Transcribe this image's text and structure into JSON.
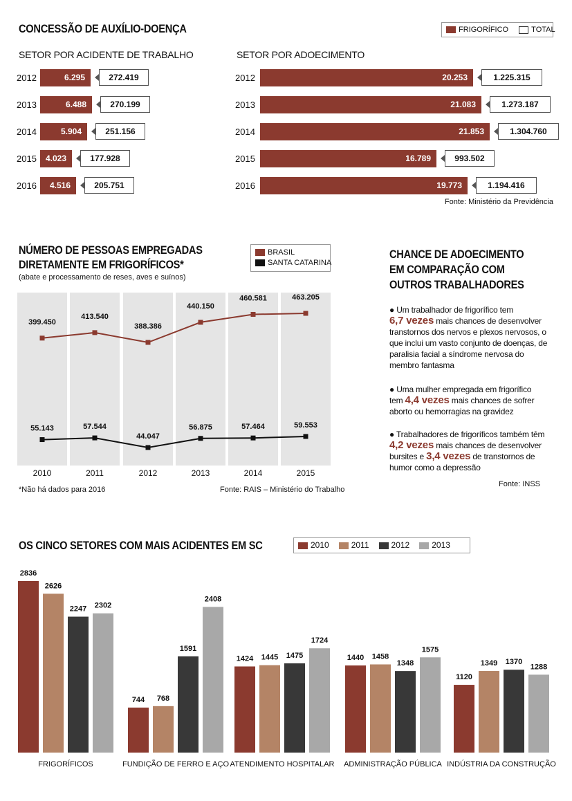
{
  "section1": {
    "title": "CONCESSÃO DE AUXÍLIO-DOENÇA",
    "legend": {
      "frigorifico": "FRIGORÍFICO",
      "total": "TOTAL"
    },
    "left": {
      "subtitle": "SETOR POR ACIDENTE DE TRABALHO",
      "rows": [
        {
          "year": "2012",
          "value": "6.295",
          "total": "272.419",
          "num": 6295
        },
        {
          "year": "2013",
          "value": "6.488",
          "total": "270.199",
          "num": 6488
        },
        {
          "year": "2014",
          "value": "5.904",
          "total": "251.156",
          "num": 5904
        },
        {
          "year": "2015",
          "value": "4.023",
          "total": "177.928",
          "num": 4023
        },
        {
          "year": "2016",
          "value": "4.516",
          "total": "205.751",
          "num": 4516
        }
      ]
    },
    "right": {
      "subtitle": "SETOR POR ADOECIMENTO",
      "rows": [
        {
          "year": "2012",
          "value": "20.253",
          "total": "1.225.315",
          "num": 20253
        },
        {
          "year": "2013",
          "value": "21.083",
          "total": "1.273.187",
          "num": 21083
        },
        {
          "year": "2014",
          "value": "21.853",
          "total": "1.304.760",
          "num": 21853
        },
        {
          "year": "2015",
          "value": "16.789",
          "total": "993.502",
          "num": 16789
        },
        {
          "year": "2016",
          "value": "19.773",
          "total": "1.194.416",
          "num": 19773
        }
      ]
    },
    "source": "Fonte: Ministério da Previdência"
  },
  "section2": {
    "title1": "NÚMERO DE PESSOAS EMPREGADAS",
    "title2": "DIRETAMENTE EM FRIGORÍFICOS*",
    "subtitle": "(abate e processamento de reses, aves e suínos)",
    "legend_brasil": "BRASIL",
    "legend_sc": "SANTA CATARINA",
    "note": "*Não há dados para 2016",
    "source": "Fonte: RAIS – Ministério do Trabalho"
  },
  "section3": {
    "title1": "CHANCE DE ADOECIMENTO",
    "title2": "EM COMPARAÇÃO COM",
    "title3": "OUTROS TRABALHADORES",
    "b1_pre": "Um trabalhador de frigorífico tem",
    "b1_hl": "6,7 vezes",
    "b1_post": "mais chances de desenvolver transtornos dos nervos e plexos nervosos, o que inclui um vasto conjunto de doenças, de paralisia facial a síndrome nervosa do membro fantasma",
    "b2_pre": "Uma mulher empregada em frigorífico tem",
    "b2_hl": "4,4 vezes",
    "b2_post": "mais chances de sofrer aborto ou hemorragias na gravidez",
    "b3_pre": "Trabalhadores de frigoríficos também têm",
    "b3_hl1": "4,2 vezes",
    "b3_mid": "mais chances de desenvolver bursites e",
    "b3_hl2": "3,4 vezes",
    "b3_post": "de transtornos de humor como a depressão",
    "source": "Fonte: INSS"
  },
  "section4": {
    "title": "OS CINCO SETORES COM MAIS ACIDENTES EM SC"
  },
  "colors": {
    "brown": "#8b3a2f",
    "tan": "#b48466",
    "dark": "#383838",
    "gray": "#a8a8a8",
    "bg": "#e5e5e5"
  },
  "chart_data": [
    {
      "type": "line",
      "title": "NÚMERO DE PESSOAS EMPREGADAS DIRETAMENTE EM FRIGORÍFICOS*",
      "x": [
        "2010",
        "2011",
        "2012",
        "2013",
        "2014",
        "2015"
      ],
      "series": [
        {
          "name": "BRASIL",
          "values": [
            399450,
            413540,
            388386,
            440150,
            460581,
            463205
          ],
          "labels": [
            "399.450",
            "413.540",
            "388.386",
            "440.150",
            "460.581",
            "463.205"
          ]
        },
        {
          "name": "SANTA CATARINA",
          "values": [
            55143,
            57544,
            44047,
            56875,
            57464,
            59553
          ],
          "labels": [
            "55.143",
            "57.544",
            "44.047",
            "56.875",
            "57.464",
            "59.553"
          ]
        }
      ]
    },
    {
      "type": "bar",
      "title": "OS CINCO SETORES COM MAIS ACIDENTES EM SC",
      "categories": [
        "FRIGORÍFICOS",
        "FUNDIÇÃO DE FERRO E AÇO",
        "ATENDIMENTO HOSPITALAR",
        "ADMINISTRAÇÃO PÚBLICA",
        "INDÚSTRIA DA CONSTRUÇÃO"
      ],
      "series": [
        {
          "name": "2010",
          "values": [
            2836,
            744,
            1424,
            1440,
            1120
          ]
        },
        {
          "name": "2011",
          "values": [
            2626,
            768,
            1445,
            1458,
            1349
          ]
        },
        {
          "name": "2012",
          "values": [
            2247,
            1591,
            1475,
            1348,
            1370
          ]
        },
        {
          "name": "2013",
          "values": [
            2302,
            2408,
            1724,
            1575,
            1288
          ]
        }
      ],
      "ylim": [
        0,
        2900
      ]
    }
  ]
}
